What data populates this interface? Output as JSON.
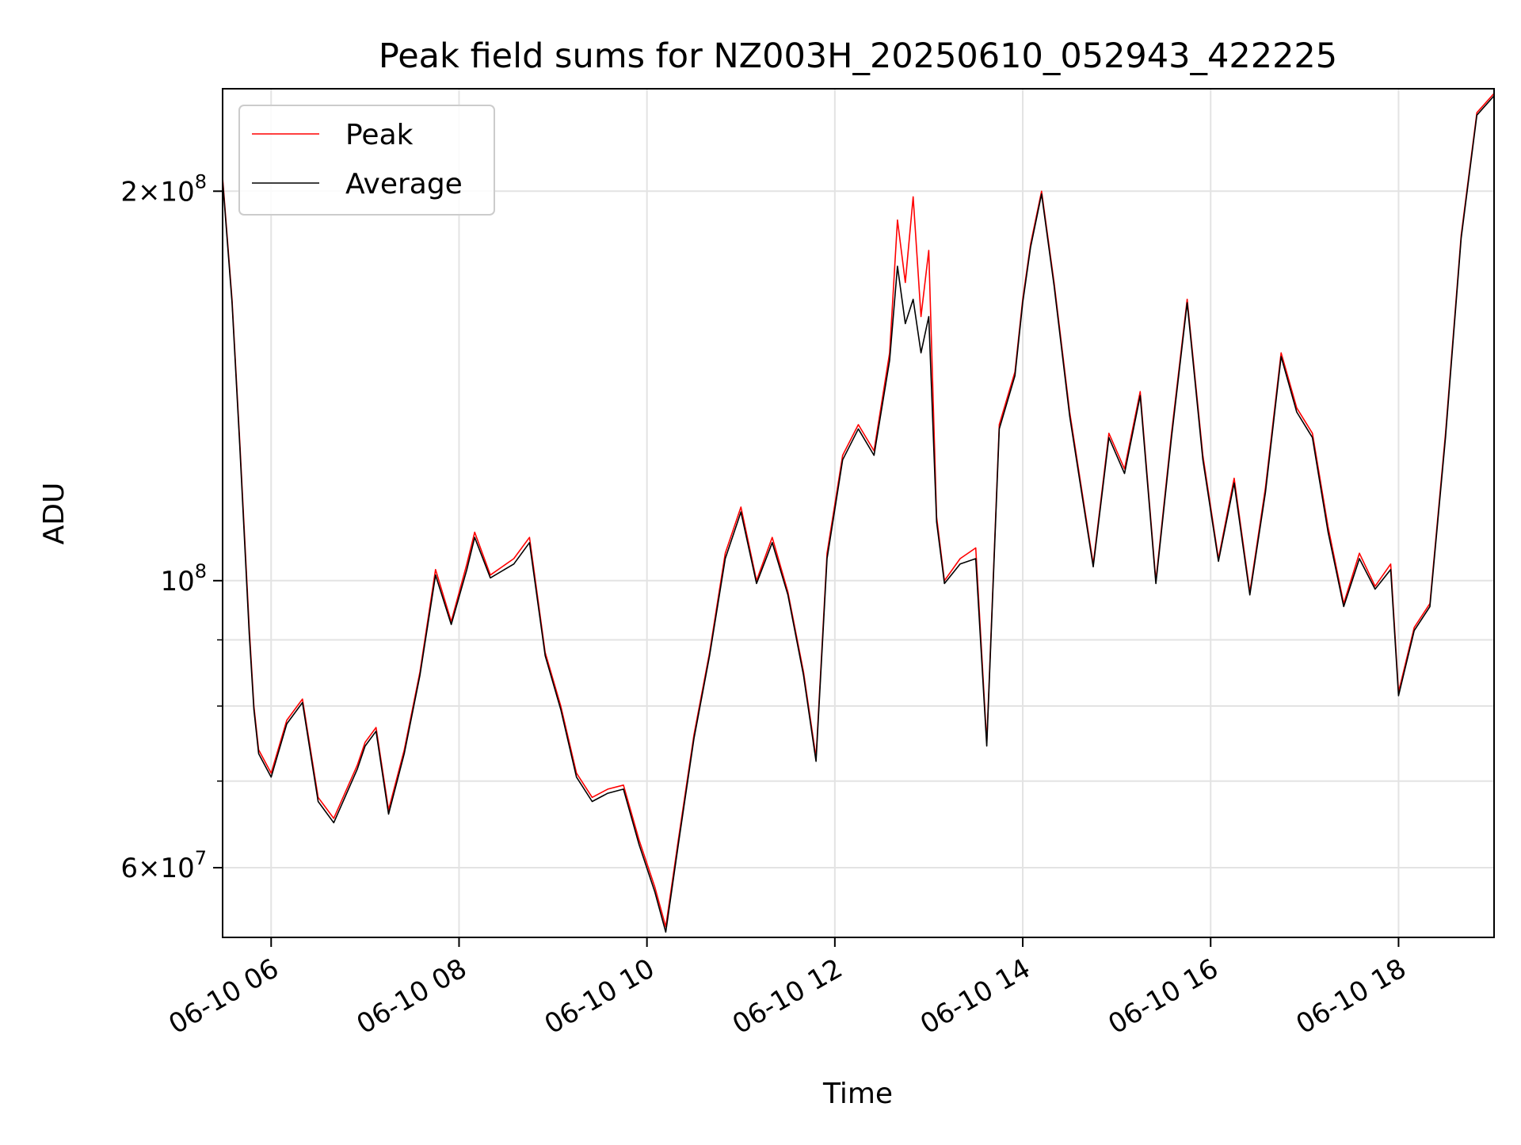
{
  "chart_data": {
    "type": "line",
    "title": "Peak field sums for NZ003H_20250610_052943_422225",
    "xlabel": "Time",
    "ylabel": "ADU",
    "yscale": "log",
    "ylim": [
      53000000,
      240000000
    ],
    "xlim": [
      "2025-06-10 05:29",
      "2025-06-10 19:01"
    ],
    "grid": true,
    "legend_position": "upper left",
    "x_tick_labels": [
      "06-10 06",
      "06-10 08",
      "06-10 10",
      "06-10 12",
      "06-10 14",
      "06-10 16",
      "06-10 18"
    ],
    "x_ticks": [
      "2025-06-10 06:00",
      "2025-06-10 08:00",
      "2025-06-10 10:00",
      "2025-06-10 12:00",
      "2025-06-10 14:00",
      "2025-06-10 16:00",
      "2025-06-10 18:00"
    ],
    "y_major_ticks": [
      {
        "value": 60000000,
        "mantissa": "6",
        "exponent": "7"
      },
      {
        "value": 100000000,
        "mantissa": "",
        "exponent": "8"
      },
      {
        "value": 200000000,
        "mantissa": "2",
        "exponent": "8"
      }
    ],
    "y_minor_ticks": [
      70000000,
      80000000,
      90000000
    ],
    "colors": {
      "peak": "#ff0000",
      "average": "#000000"
    },
    "series": [
      {
        "name": "Peak",
        "color": "#ff0000",
        "points": [
          [
            "2025-06-10 05:29",
            205000000
          ],
          [
            "2025-06-10 05:35",
            165000000
          ],
          [
            "2025-06-10 05:40",
            128000000
          ],
          [
            "2025-06-10 05:46",
            92000000
          ],
          [
            "2025-06-10 05:49",
            80000000
          ],
          [
            "2025-06-10 05:52",
            74000000
          ],
          [
            "2025-06-10 06:00",
            71000000
          ],
          [
            "2025-06-10 06:10",
            78000000
          ],
          [
            "2025-06-10 06:20",
            81000000
          ],
          [
            "2025-06-10 06:30",
            68000000
          ],
          [
            "2025-06-10 06:40",
            65500000
          ],
          [
            "2025-06-10 06:55",
            72000000
          ],
          [
            "2025-06-10 07:00",
            75000000
          ],
          [
            "2025-06-10 07:07",
            77000000
          ],
          [
            "2025-06-10 07:15",
            66500000
          ],
          [
            "2025-06-10 07:25",
            74000000
          ],
          [
            "2025-06-10 07:35",
            85000000
          ],
          [
            "2025-06-10 07:45",
            102000000
          ],
          [
            "2025-06-10 07:55",
            93000000
          ],
          [
            "2025-06-10 08:05",
            103000000
          ],
          [
            "2025-06-10 08:10",
            109000000
          ],
          [
            "2025-06-10 08:20",
            101000000
          ],
          [
            "2025-06-10 08:35",
            104000000
          ],
          [
            "2025-06-10 08:45",
            108000000
          ],
          [
            "2025-06-10 08:55",
            88000000
          ],
          [
            "2025-06-10 09:05",
            80000000
          ],
          [
            "2025-06-10 09:15",
            71000000
          ],
          [
            "2025-06-10 09:25",
            68000000
          ],
          [
            "2025-06-10 09:35",
            69000000
          ],
          [
            "2025-06-10 09:45",
            69500000
          ],
          [
            "2025-06-10 09:55",
            63000000
          ],
          [
            "2025-06-10 10:05",
            58000000
          ],
          [
            "2025-06-10 10:12",
            54000000
          ],
          [
            "2025-06-10 10:20",
            63000000
          ],
          [
            "2025-06-10 10:30",
            76000000
          ],
          [
            "2025-06-10 10:40",
            88000000
          ],
          [
            "2025-06-10 10:50",
            105000000
          ],
          [
            "2025-06-10 11:00",
            114000000
          ],
          [
            "2025-06-10 11:10",
            100000000
          ],
          [
            "2025-06-10 11:20",
            108000000
          ],
          [
            "2025-06-10 11:30",
            98000000
          ],
          [
            "2025-06-10 11:40",
            85000000
          ],
          [
            "2025-06-10 11:48",
            73000000
          ],
          [
            "2025-06-10 11:55",
            105000000
          ],
          [
            "2025-06-10 12:05",
            125000000
          ],
          [
            "2025-06-10 12:15",
            132000000
          ],
          [
            "2025-06-10 12:25",
            126000000
          ],
          [
            "2025-06-10 12:35",
            150000000
          ],
          [
            "2025-06-10 12:40",
            190000000
          ],
          [
            "2025-06-10 12:45",
            170000000
          ],
          [
            "2025-06-10 12:50",
            198000000
          ],
          [
            "2025-06-10 12:55",
            160000000
          ],
          [
            "2025-06-10 13:00",
            180000000
          ],
          [
            "2025-06-10 13:05",
            112000000
          ],
          [
            "2025-06-10 13:10",
            100000000
          ],
          [
            "2025-06-10 13:20",
            104000000
          ],
          [
            "2025-06-10 13:30",
            106000000
          ],
          [
            "2025-06-10 13:37",
            75000000
          ],
          [
            "2025-06-10 13:45",
            132000000
          ],
          [
            "2025-06-10 13:55",
            145000000
          ],
          [
            "2025-06-10 14:00",
            165000000
          ],
          [
            "2025-06-10 14:05",
            182000000
          ],
          [
            "2025-06-10 14:12",
            200000000
          ],
          [
            "2025-06-10 14:20",
            170000000
          ],
          [
            "2025-06-10 14:30",
            135000000
          ],
          [
            "2025-06-10 14:45",
            103000000
          ],
          [
            "2025-06-10 14:55",
            130000000
          ],
          [
            "2025-06-10 15:05",
            122000000
          ],
          [
            "2025-06-10 15:15",
            140000000
          ],
          [
            "2025-06-10 15:25",
            100000000
          ],
          [
            "2025-06-10 15:35",
            130000000
          ],
          [
            "2025-06-10 15:45",
            165000000
          ],
          [
            "2025-06-10 15:55",
            125000000
          ],
          [
            "2025-06-10 16:05",
            104000000
          ],
          [
            "2025-06-10 16:15",
            120000000
          ],
          [
            "2025-06-10 16:25",
            98000000
          ],
          [
            "2025-06-10 16:35",
            118000000
          ],
          [
            "2025-06-10 16:45",
            150000000
          ],
          [
            "2025-06-10 16:55",
            136000000
          ],
          [
            "2025-06-10 17:05",
            130000000
          ],
          [
            "2025-06-10 17:15",
            110000000
          ],
          [
            "2025-06-10 17:25",
            96000000
          ],
          [
            "2025-06-10 17:35",
            105000000
          ],
          [
            "2025-06-10 17:45",
            99000000
          ],
          [
            "2025-06-10 17:55",
            103000000
          ],
          [
            "2025-06-10 18:00",
            82000000
          ],
          [
            "2025-06-10 18:10",
            92000000
          ],
          [
            "2025-06-10 18:20",
            96000000
          ],
          [
            "2025-06-10 18:30",
            130000000
          ],
          [
            "2025-06-10 18:40",
            185000000
          ],
          [
            "2025-06-10 18:50",
            230000000
          ],
          [
            "2025-06-10 19:01",
            238000000
          ]
        ]
      },
      {
        "name": "Average",
        "color": "#000000",
        "points": [
          [
            "2025-06-10 05:29",
            204000000
          ],
          [
            "2025-06-10 05:35",
            164000000
          ],
          [
            "2025-06-10 05:40",
            127000000
          ],
          [
            "2025-06-10 05:46",
            91000000
          ],
          [
            "2025-06-10 05:49",
            79500000
          ],
          [
            "2025-06-10 05:52",
            73500000
          ],
          [
            "2025-06-10 06:00",
            70500000
          ],
          [
            "2025-06-10 06:10",
            77500000
          ],
          [
            "2025-06-10 06:20",
            80500000
          ],
          [
            "2025-06-10 06:30",
            67500000
          ],
          [
            "2025-06-10 06:40",
            65000000
          ],
          [
            "2025-06-10 06:55",
            71500000
          ],
          [
            "2025-06-10 07:00",
            74500000
          ],
          [
            "2025-06-10 07:07",
            76500000
          ],
          [
            "2025-06-10 07:15",
            66000000
          ],
          [
            "2025-06-10 07:25",
            73500000
          ],
          [
            "2025-06-10 07:35",
            84500000
          ],
          [
            "2025-06-10 07:45",
            101000000
          ],
          [
            "2025-06-10 07:55",
            92500000
          ],
          [
            "2025-06-10 08:05",
            102000000
          ],
          [
            "2025-06-10 08:10",
            108000000
          ],
          [
            "2025-06-10 08:20",
            100500000
          ],
          [
            "2025-06-10 08:35",
            103000000
          ],
          [
            "2025-06-10 08:45",
            107000000
          ],
          [
            "2025-06-10 08:55",
            87500000
          ],
          [
            "2025-06-10 09:05",
            79500000
          ],
          [
            "2025-06-10 09:15",
            70500000
          ],
          [
            "2025-06-10 09:25",
            67500000
          ],
          [
            "2025-06-10 09:35",
            68500000
          ],
          [
            "2025-06-10 09:45",
            69000000
          ],
          [
            "2025-06-10 09:55",
            62500000
          ],
          [
            "2025-06-10 10:05",
            57500000
          ],
          [
            "2025-06-10 10:12",
            53500000
          ],
          [
            "2025-06-10 10:20",
            62500000
          ],
          [
            "2025-06-10 10:30",
            75500000
          ],
          [
            "2025-06-10 10:40",
            87500000
          ],
          [
            "2025-06-10 10:50",
            104000000
          ],
          [
            "2025-06-10 11:00",
            113000000
          ],
          [
            "2025-06-10 11:10",
            99500000
          ],
          [
            "2025-06-10 11:20",
            107000000
          ],
          [
            "2025-06-10 11:30",
            97500000
          ],
          [
            "2025-06-10 11:40",
            84500000
          ],
          [
            "2025-06-10 11:48",
            72500000
          ],
          [
            "2025-06-10 11:55",
            104000000
          ],
          [
            "2025-06-10 12:05",
            124000000
          ],
          [
            "2025-06-10 12:15",
            131000000
          ],
          [
            "2025-06-10 12:25",
            125000000
          ],
          [
            "2025-06-10 12:35",
            148000000
          ],
          [
            "2025-06-10 12:40",
            175000000
          ],
          [
            "2025-06-10 12:45",
            158000000
          ],
          [
            "2025-06-10 12:50",
            165000000
          ],
          [
            "2025-06-10 12:55",
            150000000
          ],
          [
            "2025-06-10 13:00",
            160000000
          ],
          [
            "2025-06-10 13:05",
            111000000
          ],
          [
            "2025-06-10 13:10",
            99500000
          ],
          [
            "2025-06-10 13:20",
            103000000
          ],
          [
            "2025-06-10 13:30",
            104000000
          ],
          [
            "2025-06-10 13:37",
            74500000
          ],
          [
            "2025-06-10 13:45",
            131000000
          ],
          [
            "2025-06-10 13:55",
            144000000
          ],
          [
            "2025-06-10 14:00",
            164000000
          ],
          [
            "2025-06-10 14:05",
            181000000
          ],
          [
            "2025-06-10 14:12",
            199000000
          ],
          [
            "2025-06-10 14:20",
            169000000
          ],
          [
            "2025-06-10 14:30",
            134000000
          ],
          [
            "2025-06-10 14:45",
            102500000
          ],
          [
            "2025-06-10 14:55",
            129000000
          ],
          [
            "2025-06-10 15:05",
            121000000
          ],
          [
            "2025-06-10 15:15",
            139000000
          ],
          [
            "2025-06-10 15:25",
            99500000
          ],
          [
            "2025-06-10 15:35",
            129000000
          ],
          [
            "2025-06-10 15:45",
            164000000
          ],
          [
            "2025-06-10 15:55",
            124000000
          ],
          [
            "2025-06-10 16:05",
            103500000
          ],
          [
            "2025-06-10 16:15",
            119000000
          ],
          [
            "2025-06-10 16:25",
            97500000
          ],
          [
            "2025-06-10 16:35",
            117000000
          ],
          [
            "2025-06-10 16:45",
            149000000
          ],
          [
            "2025-06-10 16:55",
            135000000
          ],
          [
            "2025-06-10 17:05",
            129000000
          ],
          [
            "2025-06-10 17:15",
            109000000
          ],
          [
            "2025-06-10 17:25",
            95500000
          ],
          [
            "2025-06-10 17:35",
            104000000
          ],
          [
            "2025-06-10 17:45",
            98500000
          ],
          [
            "2025-06-10 17:55",
            102000000
          ],
          [
            "2025-06-10 18:00",
            81500000
          ],
          [
            "2025-06-10 18:10",
            91500000
          ],
          [
            "2025-06-10 18:20",
            95500000
          ],
          [
            "2025-06-10 18:30",
            129000000
          ],
          [
            "2025-06-10 18:40",
            184000000
          ],
          [
            "2025-06-10 18:50",
            229000000
          ],
          [
            "2025-06-10 19:01",
            237000000
          ]
        ]
      }
    ]
  }
}
